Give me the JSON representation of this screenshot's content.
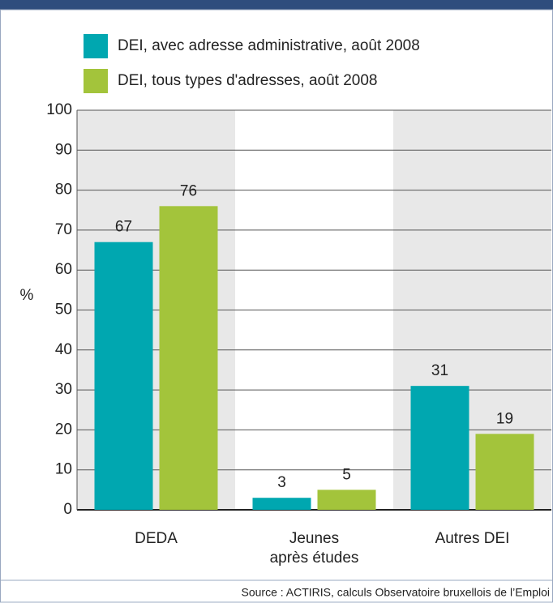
{
  "chart_data": {
    "type": "bar",
    "y_label": "%",
    "categories": [
      "DEDA",
      "Jeunes\naprès études",
      "Autres DEI"
    ],
    "series": [
      {
        "name": "DEI, avec adresse administrative, août 2008",
        "color": "#00a7b0",
        "values": [
          67,
          3,
          31
        ]
      },
      {
        "name": "DEI, tous types d'adresses, août 2008",
        "color": "#a3c43b",
        "values": [
          76,
          5,
          19
        ]
      }
    ],
    "ylim": [
      0,
      100
    ],
    "yticks": [
      0,
      10,
      20,
      30,
      40,
      50,
      60,
      70,
      80,
      90,
      100
    ],
    "grid": true,
    "source": "Source : ACTIRIS, calculs Observatoire bruxellois de l’Emploi"
  }
}
